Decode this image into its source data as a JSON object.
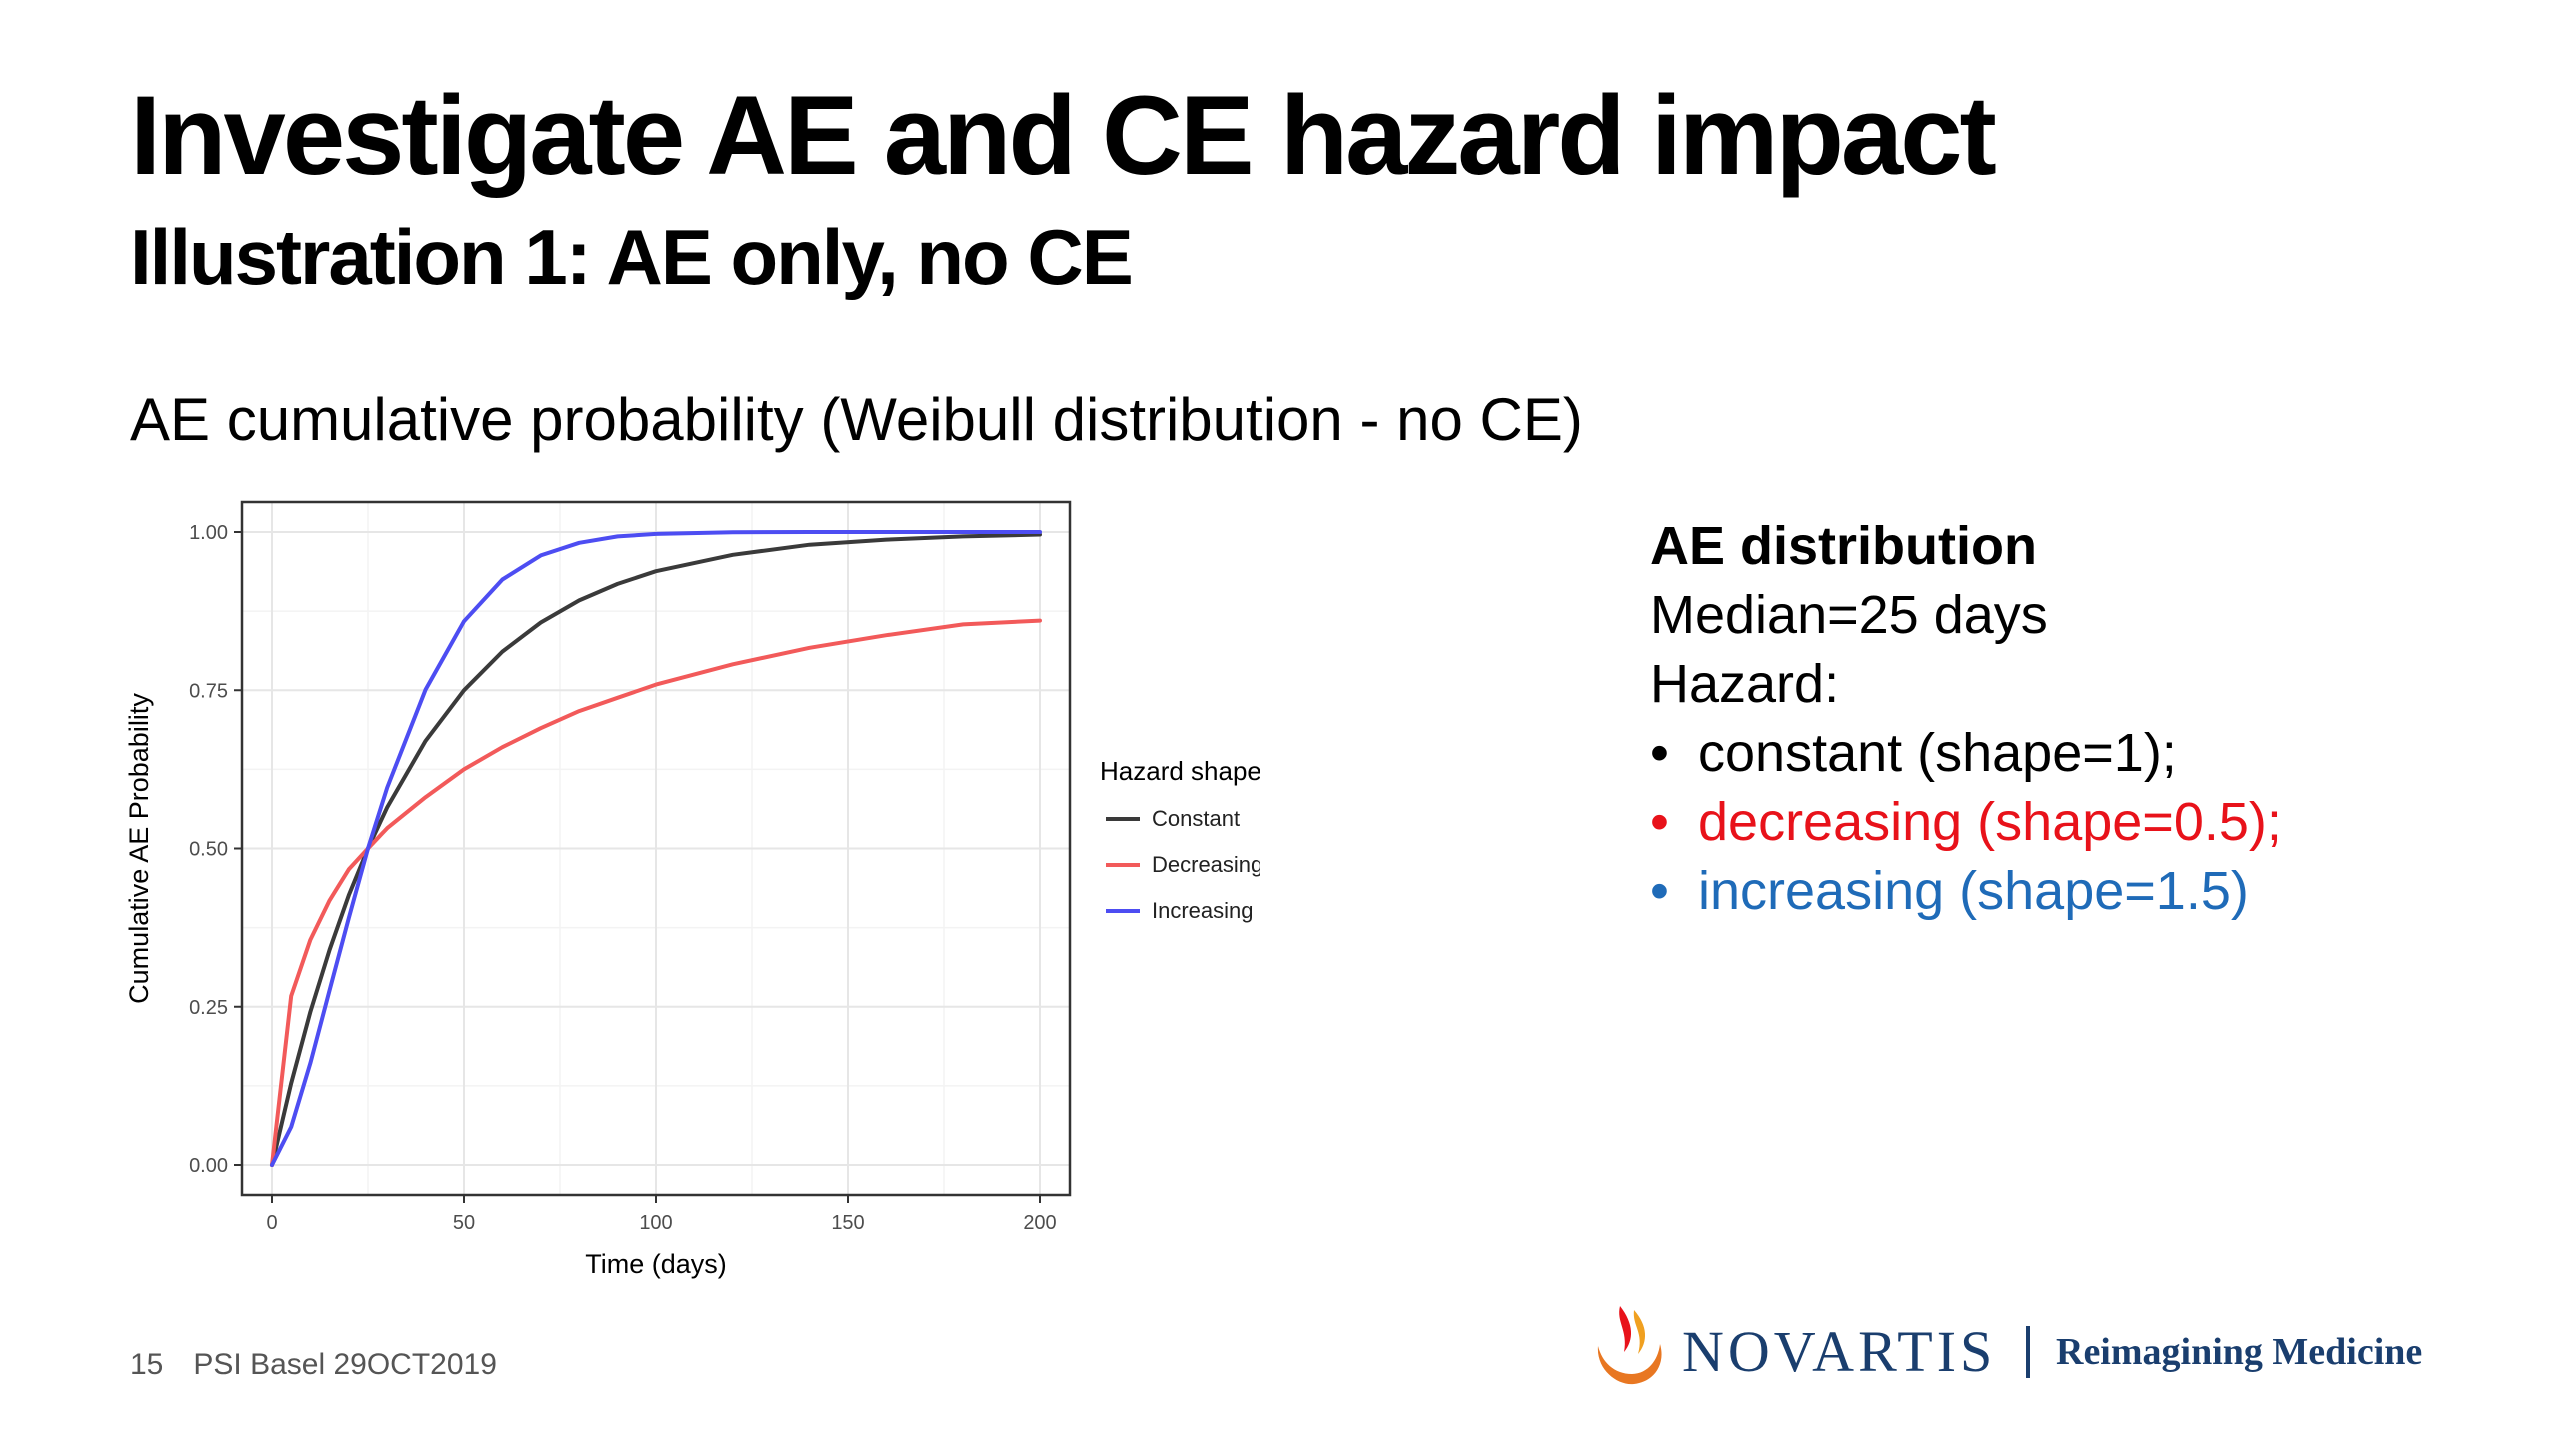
{
  "slide": {
    "title": "Investigate AE and CE hazard impact",
    "subtitle": "Illustration 1: AE only, no CE",
    "section_title": "AE cumulative probability (Weibull distribution - no CE)"
  },
  "info": {
    "heading": "AE distribution",
    "median": "Median=25  days",
    "hazard_label": "Hazard:",
    "bullets": [
      {
        "text": "constant (shape=1);",
        "color": "#000000"
      },
      {
        "text": "decreasing (shape=0.5);",
        "color": "#e8121a"
      },
      {
        "text": "increasing (shape=1.5)",
        "color": "#1f6bb8"
      }
    ]
  },
  "footer": {
    "page": "15",
    "event": "PSI Basel 29OCT2019"
  },
  "logo": {
    "brand": "NOVARTIS",
    "tagline": "Reimagining Medicine",
    "brand_color": "#1a3e6e",
    "flame_color": "#e87722"
  },
  "chart_data": {
    "type": "line",
    "xlabel": "Time (days)",
    "ylabel": "Cumulative AE Probability",
    "xlim": [
      0,
      200
    ],
    "ylim": [
      0,
      1
    ],
    "x_ticks": [
      "0",
      "50",
      "100",
      "150",
      "200"
    ],
    "y_ticks": [
      "0.00",
      "0.25",
      "0.50",
      "0.75",
      "1.00"
    ],
    "grid": true,
    "legend": {
      "title": "Hazard shape",
      "position": "right"
    },
    "x": [
      0,
      5,
      10,
      15,
      20,
      25,
      30,
      40,
      50,
      60,
      70,
      80,
      90,
      100,
      120,
      140,
      160,
      180,
      200
    ],
    "series": [
      {
        "name": "Constant",
        "color": "#3a3a3a",
        "values": [
          0,
          0.129,
          0.242,
          0.34,
          0.426,
          0.5,
          0.565,
          0.67,
          0.75,
          0.811,
          0.857,
          0.892,
          0.918,
          0.938,
          0.964,
          0.98,
          0.988,
          0.993,
          0.996
        ]
      },
      {
        "name": "Decreasing",
        "color": "#f25a5a",
        "values": [
          0,
          0.267,
          0.356,
          0.418,
          0.467,
          0.5,
          0.532,
          0.581,
          0.625,
          0.66,
          0.69,
          0.717,
          0.738,
          0.759,
          0.791,
          0.817,
          0.837,
          0.854,
          0.86
        ]
      },
      {
        "name": "Increasing",
        "color": "#4d4df2",
        "values": [
          0,
          0.06,
          0.161,
          0.276,
          0.39,
          0.5,
          0.596,
          0.751,
          0.859,
          0.925,
          0.963,
          0.983,
          0.993,
          0.997,
          0.9996,
          1.0,
          1.0,
          1.0,
          1.0
        ]
      }
    ]
  }
}
